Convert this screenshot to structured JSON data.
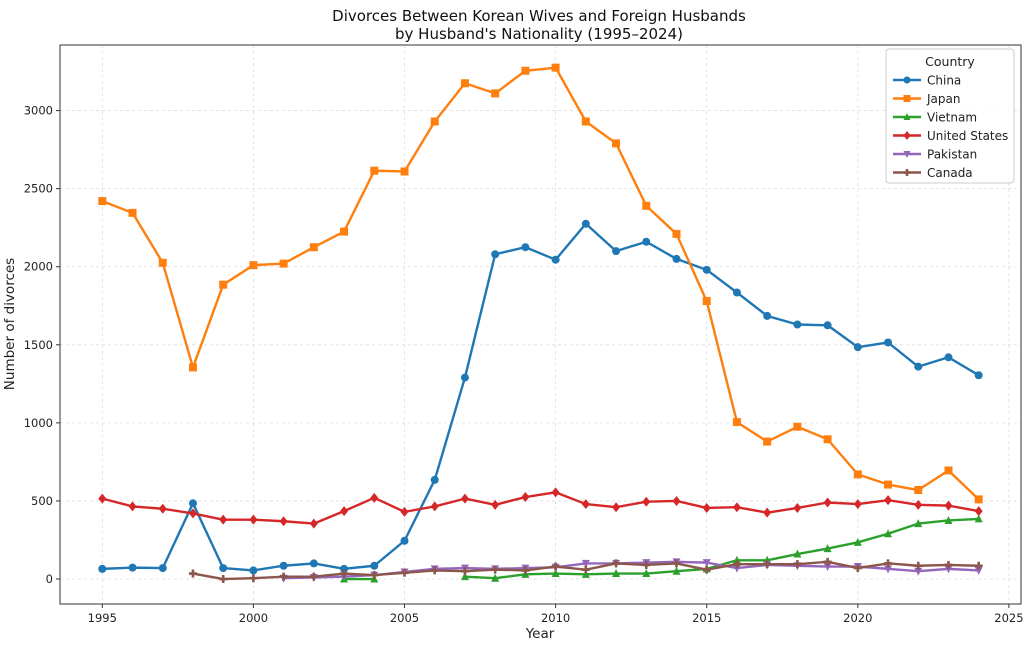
{
  "chart_data": {
    "type": "line",
    "title": [
      "Divorces Between Korean Wives and Foreign Husbands",
      "by Husband's Nationality (1995–2024)"
    ],
    "xlabel": "Year",
    "ylabel": "Number of divorces",
    "xlim": [
      1993.6,
      2025.4
    ],
    "ylim": [
      -160,
      3420
    ],
    "xticks": [
      1995,
      2000,
      2005,
      2010,
      2015,
      2020,
      2025
    ],
    "yticks": [
      0,
      500,
      1000,
      1500,
      2000,
      2500,
      3000
    ],
    "grid": true,
    "legend": {
      "title": "Country",
      "placement": "top-right"
    },
    "series": [
      {
        "name": "China",
        "color": "#1f77b4",
        "marker": "circle",
        "x": [
          1995,
          1996,
          1997,
          1998,
          1999,
          2000,
          2001,
          2002,
          2003,
          2004,
          2005,
          2006,
          2007,
          2008,
          2009,
          2010,
          2011,
          2012,
          2013,
          2014,
          2015,
          2016,
          2017,
          2018,
          2019,
          2020,
          2021,
          2022,
          2023,
          2024
        ],
        "values": [
          65,
          73,
          70,
          485,
          70,
          55,
          85,
          100,
          65,
          85,
          245,
          635,
          1290,
          2080,
          2125,
          2045,
          2275,
          2100,
          2160,
          2050,
          1980,
          1835,
          1685,
          1630,
          1625,
          1485,
          1515,
          1360,
          1420,
          1305
        ]
      },
      {
        "name": "Japan",
        "color": "#ff7f0e",
        "marker": "square",
        "x": [
          1995,
          1996,
          1997,
          1998,
          1999,
          2000,
          2001,
          2002,
          2003,
          2004,
          2005,
          2006,
          2007,
          2008,
          2009,
          2010,
          2011,
          2012,
          2013,
          2014,
          2015,
          2016,
          2017,
          2018,
          2019,
          2020,
          2021,
          2022,
          2023,
          2024
        ],
        "values": [
          2420,
          2345,
          2025,
          1355,
          1885,
          2010,
          2020,
          2125,
          2225,
          2615,
          2610,
          2930,
          3175,
          3110,
          3255,
          3275,
          2930,
          2790,
          2390,
          2210,
          1780,
          1005,
          880,
          975,
          895,
          670,
          605,
          570,
          695,
          510
        ]
      },
      {
        "name": "Vietnam",
        "color": "#2ca02c",
        "marker": "triangle-up",
        "x": [
          2003,
          2004,
          2007,
          2008,
          2009,
          2010,
          2011,
          2012,
          2013,
          2014,
          2015,
          2016,
          2017,
          2018,
          2019,
          2020,
          2021,
          2022,
          2023,
          2024
        ],
        "segments": [
          [
            0,
            1
          ],
          [
            2,
            19
          ]
        ],
        "values": [
          0,
          0,
          15,
          5,
          30,
          35,
          30,
          35,
          35,
          50,
          65,
          120,
          120,
          160,
          195,
          235,
          290,
          355,
          375,
          385
        ]
      },
      {
        "name": "United States",
        "color": "#d62728",
        "marker": "diamond",
        "x": [
          1995,
          1996,
          1997,
          1998,
          1999,
          2000,
          2001,
          2002,
          2003,
          2004,
          2005,
          2006,
          2007,
          2008,
          2009,
          2010,
          2011,
          2012,
          2013,
          2014,
          2015,
          2016,
          2017,
          2018,
          2019,
          2020,
          2021,
          2022,
          2023,
          2024
        ],
        "values": [
          515,
          465,
          450,
          420,
          380,
          380,
          370,
          355,
          435,
          520,
          430,
          465,
          515,
          475,
          525,
          555,
          480,
          460,
          495,
          500,
          455,
          460,
          425,
          455,
          490,
          480,
          505,
          475,
          470,
          435
        ]
      },
      {
        "name": "Pakistan",
        "color": "#9467bd",
        "marker": "triangle-down",
        "x": [
          2001,
          2002,
          2003,
          2004,
          2005,
          2006,
          2007,
          2008,
          2009,
          2010,
          2011,
          2012,
          2013,
          2014,
          2015,
          2016,
          2017,
          2018,
          2019,
          2020,
          2021,
          2022,
          2023,
          2024
        ],
        "values": [
          5,
          10,
          15,
          25,
          45,
          65,
          70,
          65,
          70,
          75,
          100,
          100,
          105,
          110,
          105,
          70,
          90,
          85,
          80,
          80,
          65,
          50,
          65,
          55
        ]
      },
      {
        "name": "Canada",
        "color": "#8c564b",
        "marker": "plus",
        "x": [
          1998,
          1999,
          2000,
          2001,
          2002,
          2003,
          2004,
          2005,
          2006,
          2007,
          2008,
          2009,
          2010,
          2011,
          2012,
          2013,
          2014,
          2015,
          2016,
          2017,
          2018,
          2019,
          2020,
          2021,
          2022,
          2023,
          2024
        ],
        "values": [
          35,
          0,
          5,
          15,
          15,
          35,
          25,
          40,
          55,
          50,
          60,
          55,
          80,
          60,
          100,
          90,
          100,
          60,
          95,
          95,
          95,
          110,
          70,
          100,
          85,
          90,
          85
        ]
      }
    ]
  }
}
